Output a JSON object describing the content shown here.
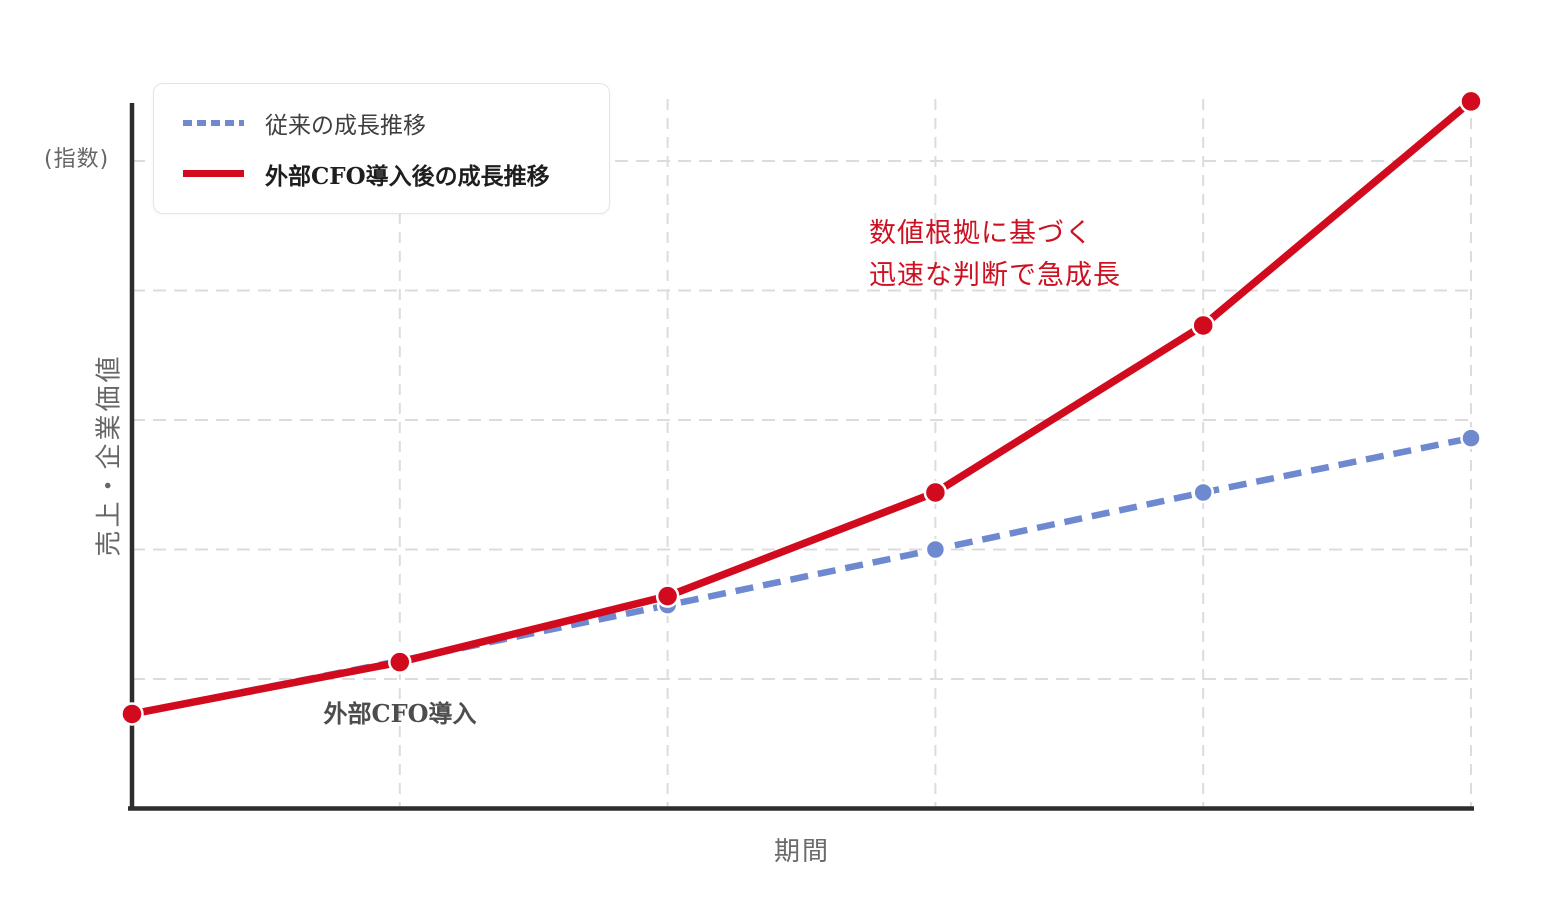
{
  "chart_data": {
    "type": "line",
    "title": "",
    "xlabel": "期間",
    "ylabel": "売上・企業価値",
    "y_unit_note": "(指数)",
    "x": [
      0,
      1,
      2,
      3,
      4,
      5
    ],
    "x_tick_labels": [],
    "xlim": [
      0,
      5
    ],
    "ylim": [
      0,
      5.48
    ],
    "grid": {
      "shown": true,
      "style": "dashed",
      "vertical_at_x": [
        1,
        2,
        3,
        4,
        5
      ],
      "horizontal_at_y": [
        1,
        2,
        3,
        4,
        5
      ]
    },
    "legend_position": "upper left",
    "series": [
      {
        "name": "従来の成長推移",
        "style": "dashed",
        "color": "#6e89d0",
        "marker": "circle",
        "values": [
          0.73,
          1.14,
          1.57,
          2.0,
          2.44,
          2.86
        ]
      },
      {
        "name": "外部CFO導入後の成長推移",
        "style": "solid",
        "color": "#d10a1e",
        "marker": "circle",
        "values": [
          0.73,
          1.13,
          1.64,
          2.44,
          3.73,
          5.46
        ]
      }
    ],
    "annotations": [
      {
        "text": "外部CFO導入",
        "color": "#4d4d4d",
        "position": "below second data point"
      },
      {
        "text": "数値根拠に基づく 迅速な判断で急成長",
        "color": "#d10a1e",
        "position": "upper middle area"
      }
    ]
  },
  "labels": {
    "unit": "(指数)",
    "ylabel": "売上・企業価値",
    "xlabel": "期間"
  },
  "legend": {
    "items": [
      {
        "label": "従来の成長推移",
        "bold": false
      },
      {
        "label": "外部CFO導入後の成長推移",
        "bold": true
      }
    ]
  },
  "annotations": {
    "cfo_intro": "外部CFO導入",
    "growth_line1": "数値根拠に基づく",
    "growth_line2": "迅速な判断で急成長"
  },
  "colors": {
    "red_series": "#d10a1e",
    "blue_series": "#6e89d0",
    "grid": "#dcdcdc",
    "axis": "#2d2d2d",
    "annotation_red": "#cc1122",
    "annotation_gray": "#4d4d4d"
  }
}
